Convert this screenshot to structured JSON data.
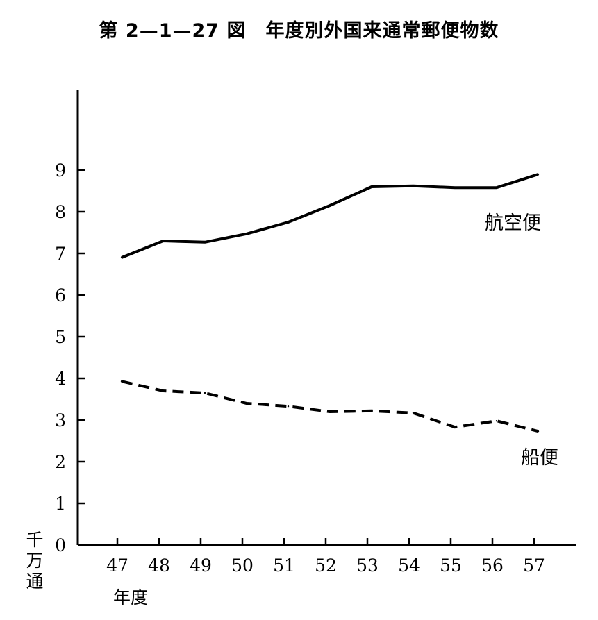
{
  "chart_data": {
    "type": "line",
    "title": "第 2—1—27 図　年度別外国来通常郵便物数",
    "ylabel": "千万通",
    "xlabel": "年度",
    "categories": [
      "47",
      "48",
      "49",
      "50",
      "51",
      "52",
      "53",
      "54",
      "55",
      "56",
      "57"
    ],
    "ylim": [
      0,
      10
    ],
    "yticks": [
      0,
      1,
      2,
      3,
      4,
      5,
      6,
      7,
      8,
      9
    ],
    "grid": false,
    "series": [
      {
        "name": "航空便",
        "style": "solid",
        "color": "#000000",
        "values": [
          6.9,
          7.3,
          7.27,
          7.47,
          7.75,
          8.15,
          8.6,
          8.62,
          8.58,
          8.58,
          8.9
        ]
      },
      {
        "name": "船便",
        "style": "dashed",
        "color": "#000000",
        "values": [
          3.93,
          3.7,
          3.65,
          3.4,
          3.33,
          3.2,
          3.22,
          3.17,
          2.83,
          2.98,
          2.73
        ]
      }
    ]
  }
}
